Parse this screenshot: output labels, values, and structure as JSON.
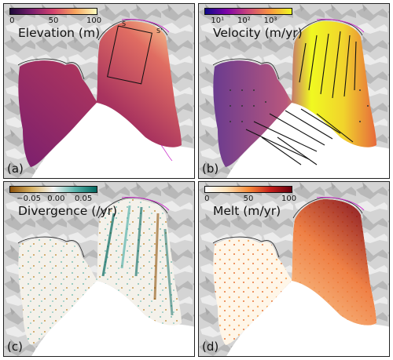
{
  "panels": {
    "a": {
      "letter": "(a)",
      "title": "Elevation (m)",
      "ticks": [
        "0",
        "50",
        "100"
      ],
      "section_labels": [
        "S",
        "S'"
      ]
    },
    "b": {
      "letter": "(b)",
      "title": "Velocity (m/yr)",
      "ticks": [
        "10¹",
        "10²",
        "10³"
      ]
    },
    "c": {
      "letter": "(c)",
      "title": "Divergence (/yr)",
      "ticks": [
        "−0.05",
        "0.00",
        "0.05"
      ]
    },
    "d": {
      "letter": "(d)",
      "title": "Melt (m/yr)",
      "ticks": [
        "0",
        "50",
        "100"
      ]
    }
  },
  "colors": {
    "elevation": [
      "#1d0a3a",
      "#7a1f6e",
      "#d3436e",
      "#f7a35c",
      "#fcfdbf"
    ],
    "velocity": [
      "#0d0887",
      "#7e03a8",
      "#cc4778",
      "#f89540",
      "#f0f921"
    ],
    "divergence": [
      "#8c510a",
      "#d8b365",
      "#f5f5f5",
      "#5ab4ac",
      "#01665e"
    ],
    "melt": [
      "#ffffff",
      "#fde0b4",
      "#f78d3c",
      "#c6201b",
      "#67000d"
    ],
    "coastline": "#222222",
    "grounding_line": "#cc33cc"
  }
}
